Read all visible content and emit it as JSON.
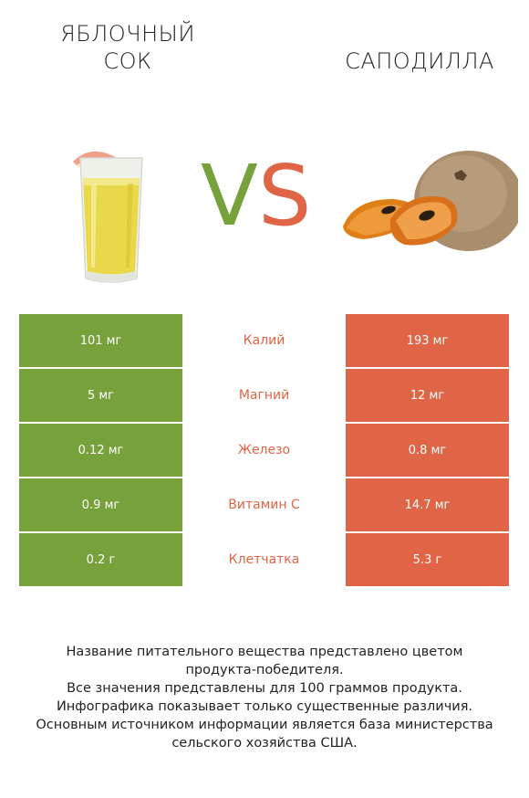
{
  "titles": {
    "left_line1": "ЯБЛОЧНЫЙ",
    "left_line2": "СОК",
    "right": "САПОДИЛЛА"
  },
  "vs": {
    "v": "V",
    "s": "S"
  },
  "colors": {
    "left": "#77a13a",
    "right": "#e06446"
  },
  "rows": [
    {
      "nutrient": "Калий",
      "left": "101 мг",
      "right": "193 мг"
    },
    {
      "nutrient": "Магний",
      "left": "5 мг",
      "right": "12 мг"
    },
    {
      "nutrient": "Железо",
      "left": "0.12 мг",
      "right": "0.8 мг"
    },
    {
      "nutrient": "Витамин С",
      "left": "0.9 мг",
      "right": "14.7 мг"
    },
    {
      "nutrient": "Клетчатка",
      "left": "0.2 г",
      "right": "5.3 г"
    }
  ],
  "footer": {
    "line1": "Название питательного вещества представлено цветом",
    "line2": "продукта-победителя.",
    "line3": "Все значения представлены для 100 граммов продукта.",
    "line4": "Инфографика показывает только существенные различия.",
    "line5": "Основным источником информации является база министерства",
    "line6": "сельского хозяйства США."
  }
}
